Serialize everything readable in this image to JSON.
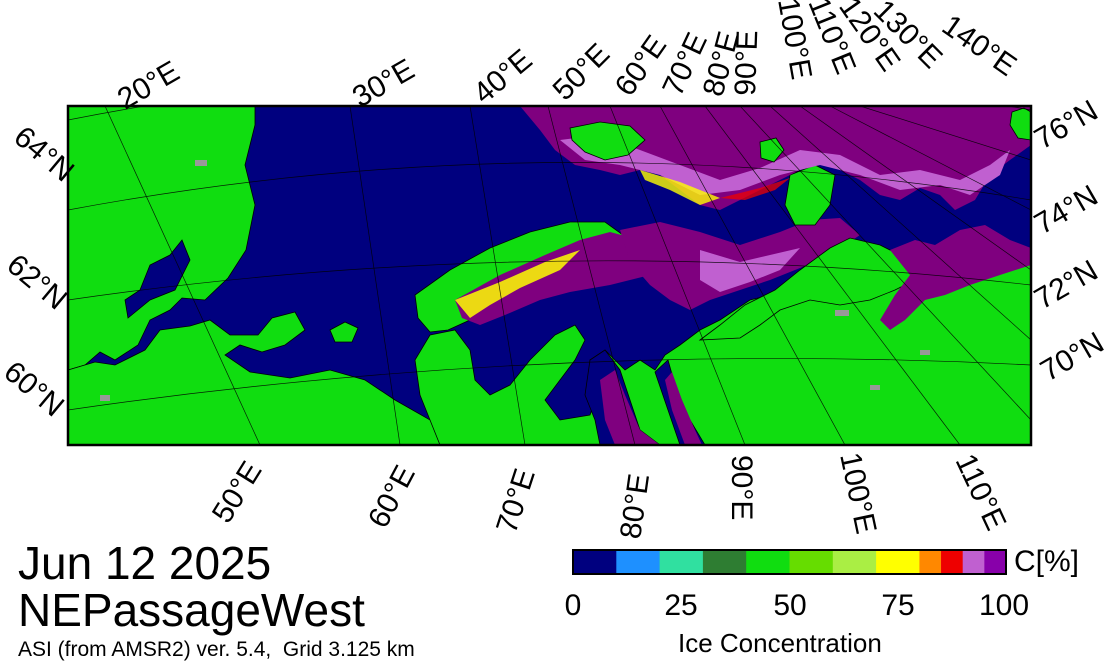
{
  "map": {
    "lon_top_labels": [
      "20°E",
      "30°E",
      "40°E",
      "50°E",
      "60°E",
      "70°E",
      "80°E",
      "90°E",
      "100°E",
      "110°E",
      "120°E",
      "130°E",
      "140°E"
    ],
    "lon_bottom_labels": [
      "50°E",
      "60°E",
      "70°E",
      "80°E",
      "90°E",
      "100°E",
      "110°E"
    ],
    "lat_left_labels": [
      "64°N",
      "62°N",
      "60°N"
    ],
    "lat_right_labels": [
      "76°N",
      "74°N",
      "72°N",
      "70°N"
    ],
    "colors": {
      "open_water": "#00007f",
      "land": "#10dd10",
      "ice_high": "#7f007f",
      "ice_mid": "#c060d0",
      "coast": "#000000",
      "gray_patch": "#999999"
    }
  },
  "info": {
    "date": "Jun 12 2025",
    "region": "NEPassageWest",
    "product": "ASI (from AMSR2) ver. 5.4,  Grid 3.125 km"
  },
  "colorbar": {
    "unit": "C[%]",
    "title": "Ice Concentration",
    "ticks": [
      "0",
      "25",
      "50",
      "75",
      "100"
    ],
    "colors": [
      "#00007f",
      "#1e90ff",
      "#30e0a0",
      "#2e7d32",
      "#10dd10",
      "#66dd00",
      "#aaee44",
      "#ffff00",
      "#ff8800",
      "#ee0000",
      "#c060d0",
      "#8800aa"
    ]
  }
}
